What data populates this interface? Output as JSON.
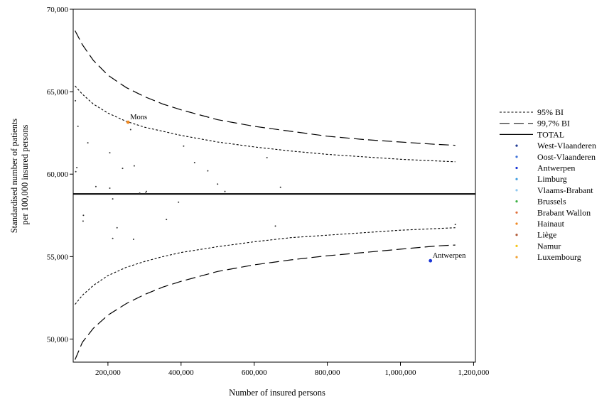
{
  "chart_data": {
    "type": "scatter",
    "xlabel": "Number of insured persons",
    "ylabel_lines": [
      "Standardised number of patients",
      "per 100,000 insured persons"
    ],
    "xlim": [
      105000,
      1205000
    ],
    "ylim": [
      48600,
      70000
    ],
    "x_ticks": [
      200000,
      400000,
      600000,
      800000,
      1000000,
      1200000
    ],
    "x_tick_labels": [
      "200,000",
      "400,000",
      "600,000",
      "800,000",
      "1,000,000",
      "1,200,000"
    ],
    "y_ticks": [
      50000,
      55000,
      60000,
      65000,
      70000
    ],
    "y_tick_labels": [
      "50,000",
      "55,000",
      "60,000",
      "65,000",
      "70,000"
    ],
    "total": 58800,
    "bands": [
      {
        "name": "95% BI",
        "style": "dotted",
        "width": 1.1,
        "upper": [
          [
            110000,
            65350
          ],
          [
            130000,
            64850
          ],
          [
            160000,
            64250
          ],
          [
            200000,
            63700
          ],
          [
            250000,
            63200
          ],
          [
            300000,
            62850
          ],
          [
            350000,
            62600
          ],
          [
            400000,
            62350
          ],
          [
            500000,
            61950
          ],
          [
            600000,
            61650
          ],
          [
            700000,
            61400
          ],
          [
            800000,
            61200
          ],
          [
            900000,
            61050
          ],
          [
            1000000,
            60900
          ],
          [
            1100000,
            60800
          ],
          [
            1150000,
            60750
          ]
        ],
        "lower": [
          [
            110000,
            52100
          ],
          [
            130000,
            52650
          ],
          [
            160000,
            53250
          ],
          [
            200000,
            53850
          ],
          [
            250000,
            54350
          ],
          [
            300000,
            54700
          ],
          [
            350000,
            55000
          ],
          [
            400000,
            55250
          ],
          [
            500000,
            55600
          ],
          [
            600000,
            55900
          ],
          [
            700000,
            56150
          ],
          [
            800000,
            56300
          ],
          [
            900000,
            56450
          ],
          [
            1000000,
            56600
          ],
          [
            1100000,
            56700
          ],
          [
            1150000,
            56750
          ]
        ]
      },
      {
        "name": "99,7% BI",
        "style": "dashed",
        "width": 1.2,
        "upper": [
          [
            110000,
            68700
          ],
          [
            130000,
            67850
          ],
          [
            160000,
            66900
          ],
          [
            200000,
            66000
          ],
          [
            250000,
            65250
          ],
          [
            300000,
            64700
          ],
          [
            350000,
            64250
          ],
          [
            400000,
            63900
          ],
          [
            500000,
            63300
          ],
          [
            600000,
            62900
          ],
          [
            700000,
            62600
          ],
          [
            800000,
            62300
          ],
          [
            900000,
            62100
          ],
          [
            1000000,
            61950
          ],
          [
            1100000,
            61800
          ],
          [
            1150000,
            61750
          ]
        ],
        "lower": [
          [
            110000,
            48750
          ],
          [
            130000,
            49800
          ],
          [
            160000,
            50650
          ],
          [
            200000,
            51450
          ],
          [
            250000,
            52150
          ],
          [
            300000,
            52700
          ],
          [
            350000,
            53150
          ],
          [
            400000,
            53500
          ],
          [
            500000,
            54100
          ],
          [
            600000,
            54500
          ],
          [
            700000,
            54800
          ],
          [
            800000,
            55050
          ],
          [
            900000,
            55250
          ],
          [
            1000000,
            55450
          ],
          [
            1100000,
            55650
          ],
          [
            1150000,
            55700
          ]
        ]
      }
    ],
    "legend": [
      {
        "label": "95% BI",
        "kind": "dotted"
      },
      {
        "label": "99,7% BI",
        "kind": "dashed"
      },
      {
        "label": "TOTAL",
        "kind": "solid"
      },
      {
        "label": "West-Vlaanderen",
        "kind": "dot",
        "color": "#1f3a93"
      },
      {
        "label": "Oost-Vlaanderen",
        "kind": "dot",
        "color": "#3a6fd8"
      },
      {
        "label": "Antwerpen",
        "kind": "dot",
        "color": "#1a35d6"
      },
      {
        "label": "Limburg",
        "kind": "dot",
        "color": "#3f9ce0"
      },
      {
        "label": "Vlaams-Brabant",
        "kind": "dot",
        "color": "#8fc8f0"
      },
      {
        "label": "Brussels",
        "kind": "dot",
        "color": "#3cb043"
      },
      {
        "label": "Brabant Wallon",
        "kind": "dot",
        "color": "#e0703a"
      },
      {
        "label": "Hainaut",
        "kind": "dot",
        "color": "#f08a24"
      },
      {
        "label": "Liège",
        "kind": "dot",
        "color": "#b05a38"
      },
      {
        "label": "Namur",
        "kind": "dot",
        "color": "#f5c518"
      },
      {
        "label": "Luxembourg",
        "kind": "dot",
        "color": "#f0a030"
      }
    ],
    "points": [
      {
        "x": 111000,
        "y": 64450
      },
      {
        "x": 118000,
        "y": 62900
      },
      {
        "x": 145000,
        "y": 61900
      },
      {
        "x": 115000,
        "y": 60400
      },
      {
        "x": 112000,
        "y": 60150
      },
      {
        "x": 205000,
        "y": 61300
      },
      {
        "x": 262000,
        "y": 62700
      },
      {
        "x": 240000,
        "y": 60350
      },
      {
        "x": 272000,
        "y": 60500
      },
      {
        "x": 167000,
        "y": 59250
      },
      {
        "x": 205000,
        "y": 59150
      },
      {
        "x": 287000,
        "y": 58850
      },
      {
        "x": 303000,
        "y": 58850
      },
      {
        "x": 305000,
        "y": 58950
      },
      {
        "x": 213000,
        "y": 58500
      },
      {
        "x": 407000,
        "y": 61700
      },
      {
        "x": 437000,
        "y": 60700
      },
      {
        "x": 473000,
        "y": 60200
      },
      {
        "x": 500000,
        "y": 59400
      },
      {
        "x": 520000,
        "y": 58950
      },
      {
        "x": 635000,
        "y": 61000
      },
      {
        "x": 672000,
        "y": 59200
      },
      {
        "x": 393000,
        "y": 58300
      },
      {
        "x": 133000,
        "y": 57500
      },
      {
        "x": 132000,
        "y": 57150
      },
      {
        "x": 360000,
        "y": 57250
      },
      {
        "x": 225000,
        "y": 56750
      },
      {
        "x": 213000,
        "y": 56100
      },
      {
        "x": 270000,
        "y": 56050
      },
      {
        "x": 658000,
        "y": 56850
      },
      {
        "x": 1150000,
        "y": 56950
      },
      {
        "x": 255000,
        "y": 63150,
        "color": "#f08a24",
        "label": "Mons"
      },
      {
        "x": 1082000,
        "y": 54750,
        "color": "#1a35d6",
        "label": "Antwerpen"
      }
    ]
  }
}
